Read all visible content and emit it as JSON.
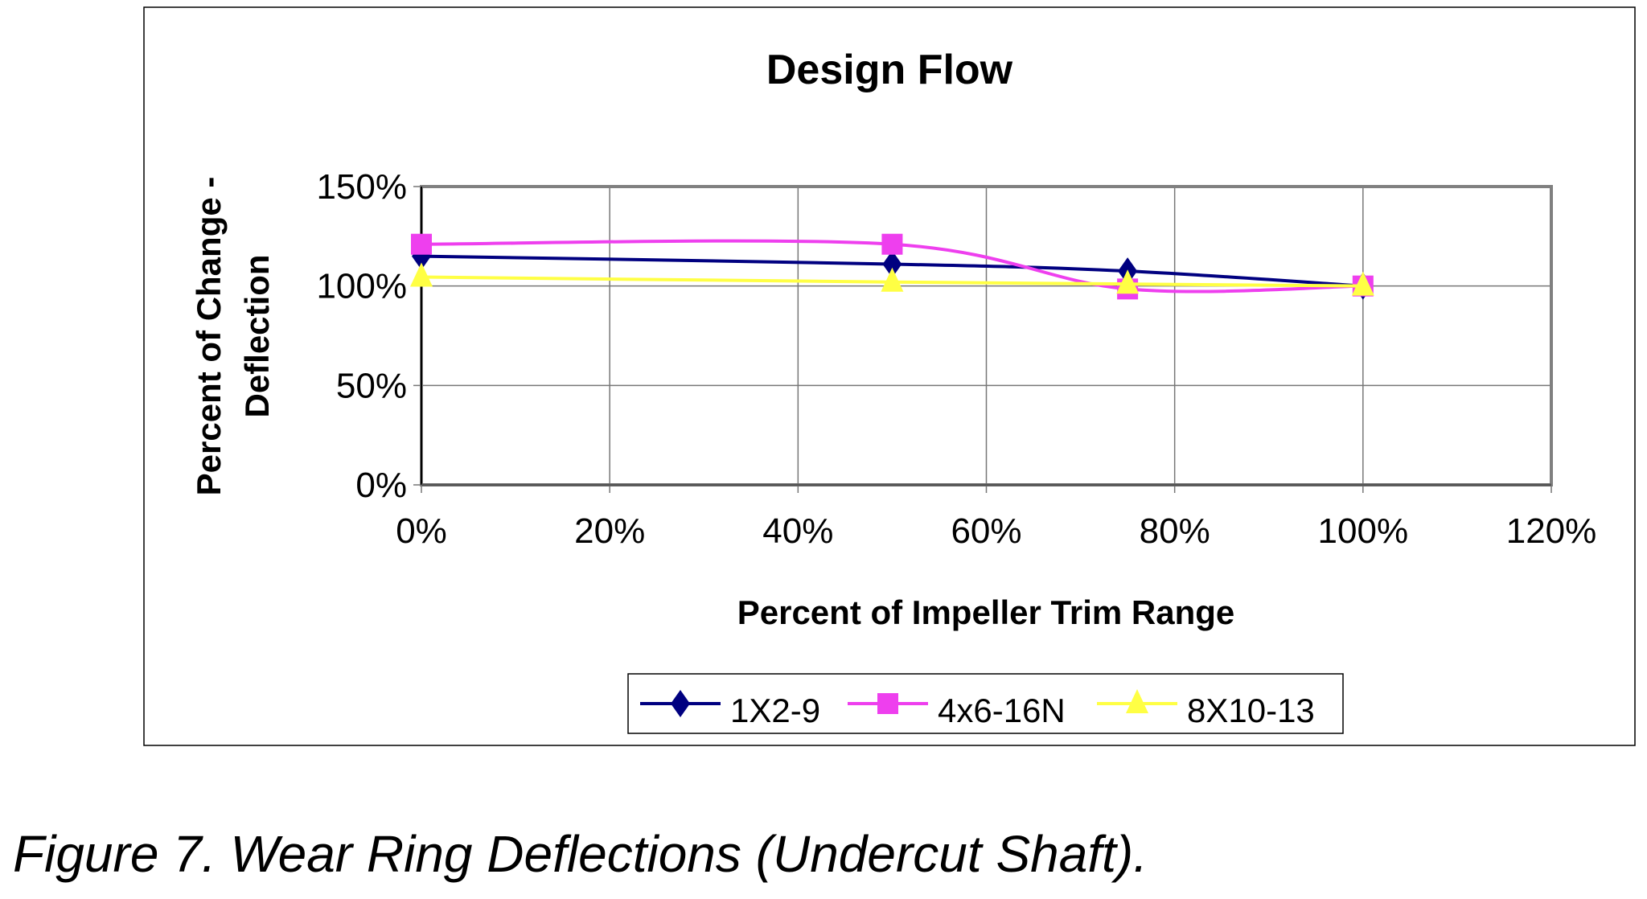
{
  "chart_data": {
    "type": "line",
    "title": "Design Flow",
    "xlabel": "Percent of Impeller Trim Range",
    "ylabel": "Percent of Change - Deflection",
    "ylabel_lines": [
      "Percent of Change -",
      "Deflection"
    ],
    "x_ticks": [
      "0%",
      "20%",
      "40%",
      "60%",
      "80%",
      "100%",
      "120%"
    ],
    "y_ticks": [
      "0%",
      "50%",
      "100%",
      "150%"
    ],
    "xlim": [
      0,
      120
    ],
    "ylim": [
      0,
      150
    ],
    "grid": true,
    "smoothed": true,
    "legend_position": "bottom",
    "series": [
      {
        "name": "1X2-9",
        "color": "#000080",
        "marker": "diamond",
        "x": [
          0,
          50,
          75,
          100
        ],
        "y": [
          115,
          111,
          107.5,
          100
        ]
      },
      {
        "name": "4x6-16N",
        "color": "#ee3fee",
        "marker": "square",
        "x": [
          0,
          50,
          75,
          100
        ],
        "y": [
          121,
          121,
          98.5,
          100
        ]
      },
      {
        "name": "8X10-13",
        "color": "#ffff44",
        "marker": "triangle",
        "x": [
          0,
          50,
          75,
          100
        ],
        "y": [
          104.5,
          102,
          101,
          100
        ]
      }
    ]
  },
  "caption": "Figure 7. Wear Ring Deflections (Undercut Shaft)."
}
